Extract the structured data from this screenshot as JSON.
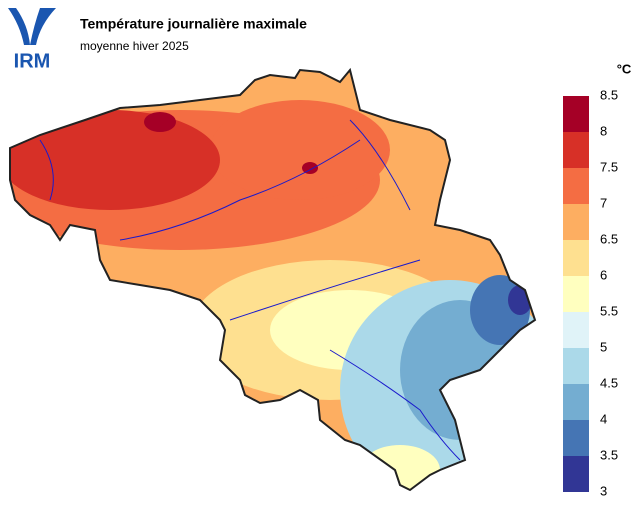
{
  "header": {
    "logo": "IRM",
    "title": "Température journalière maximale",
    "subtitle": "moyenne hiver 2025"
  },
  "legend": {
    "unit": "°C",
    "ticks": [
      3,
      3.5,
      4,
      4.5,
      5,
      5.5,
      6,
      6.5,
      7,
      7.5,
      8,
      8.5
    ],
    "colors": [
      "#313695",
      "#4575b4",
      "#74add1",
      "#abd9e9",
      "#e0f3f8",
      "#ffffbf",
      "#fee090",
      "#fdae61",
      "#f46d43",
      "#d73027",
      "#a50026"
    ]
  }
}
